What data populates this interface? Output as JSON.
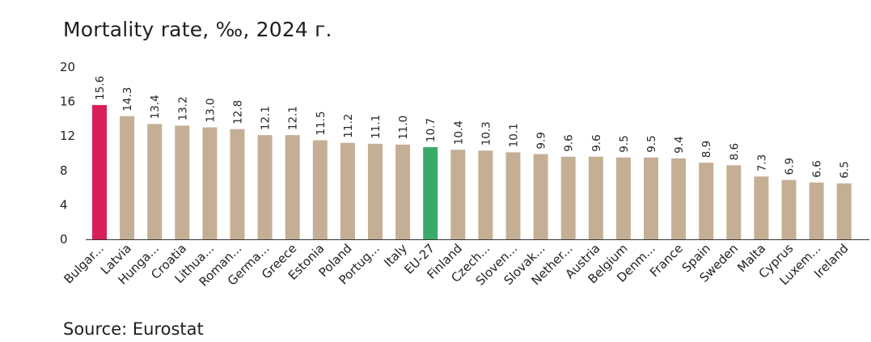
{
  "title": "Mortality rate, ‰, 2024 г.",
  "source": "Source: Eurostat",
  "colors": {
    "default_bar": "#c4af95",
    "highlight_bar": "#d81f5a",
    "eu_bar": "#3aaa6a",
    "axis": "#333333"
  },
  "chart_data": {
    "type": "bar",
    "title": "Mortality rate, ‰, 2024 г.",
    "xlabel": "",
    "ylabel": "",
    "ylim": [
      0,
      20
    ],
    "yticks": [
      "0",
      "4",
      "8",
      "12",
      "16",
      "20"
    ],
    "grid": false,
    "legend": "none",
    "categories": [
      "Bulgar...",
      "Latvia",
      "Hunga...",
      "Croatia",
      "Lithua...",
      "Roman...",
      "Germa...",
      "Greece",
      "Estonia",
      "Poland",
      "Portug...",
      "Italy",
      "EU-27",
      "Finland",
      "Czech...",
      "Sloven...",
      "Slovak...",
      "Nether...",
      "Austria",
      "Belgium",
      "Denm...",
      "France",
      "Spain",
      "Sweden",
      "Malta",
      "Cyprus",
      "Luxem...",
      "Ireland"
    ],
    "values": [
      15.6,
      14.3,
      13.4,
      13.2,
      13.0,
      12.8,
      12.1,
      12.1,
      11.5,
      11.2,
      11.1,
      11.0,
      10.7,
      10.4,
      10.3,
      10.1,
      9.9,
      9.6,
      9.6,
      9.5,
      9.5,
      9.4,
      8.9,
      8.6,
      7.3,
      6.9,
      6.6,
      6.5
    ],
    "value_labels": [
      "15.6",
      "14.3",
      "13.4",
      "13.2",
      "13.0",
      "12.8",
      "12.1",
      "12.1",
      "11.5",
      "11.2",
      "11.1",
      "11.0",
      "10.7",
      "10.4",
      "10.3",
      "10.1",
      "9.9",
      "9.6",
      "9.6",
      "9.5",
      "9.5",
      "9.4",
      "8.9",
      "8.6",
      "7.3",
      "6.9",
      "6.6",
      "6.5"
    ],
    "highlight": {
      "Bulgar...": "highlight_bar",
      "EU-27": "eu_bar"
    }
  }
}
